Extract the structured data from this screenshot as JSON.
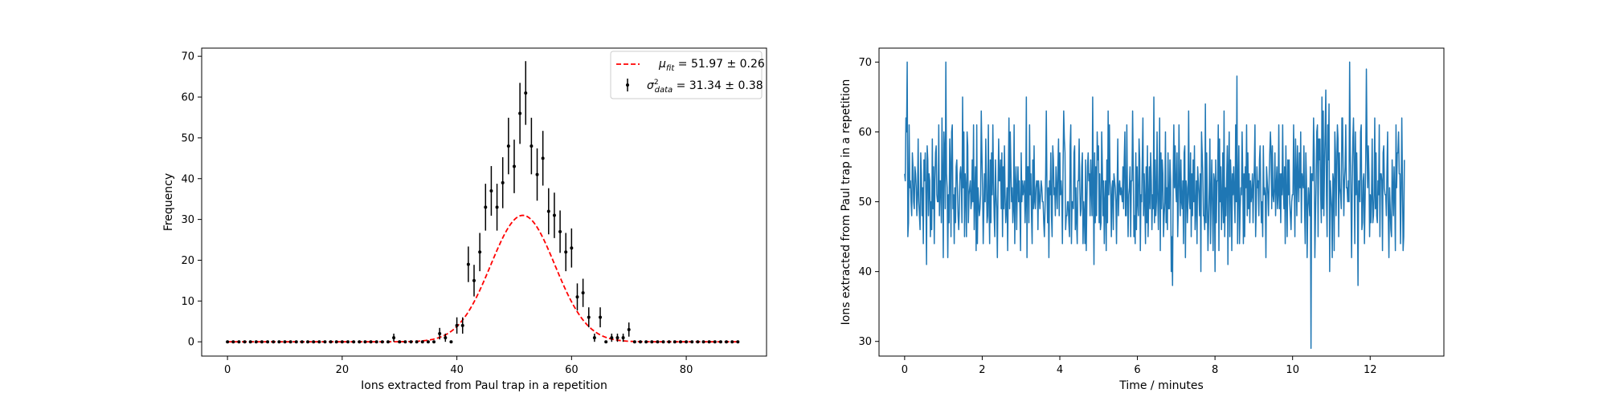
{
  "chart_data": [
    {
      "type": "scatter",
      "xlabel": "Ions extracted from Paul trap in a repetition",
      "ylabel": "Frequency",
      "xlim": [
        -4.5,
        94
      ],
      "ylim": [
        -3.5,
        72
      ],
      "xticks": [
        "0",
        "20",
        "40",
        "60",
        "80"
      ],
      "xtick_values": [
        0,
        20,
        40,
        60,
        80
      ],
      "yticks": [
        "0",
        "10",
        "20",
        "30",
        "40",
        "50",
        "60",
        "70"
      ],
      "ytick_values": [
        0,
        10,
        20,
        30,
        40,
        50,
        60,
        70
      ],
      "legend_position": "top-right",
      "legend": [
        {
          "text": "μfit = 51.97 ± 0.26",
          "style": "red dashed line"
        },
        {
          "text": "σ²data = 31.34 ± 0.38",
          "style": "black points with error bars"
        }
      ],
      "fit": {
        "name": "μfit = 51.97 ± 0.26",
        "type": "gaussian",
        "amplitude": 31,
        "mean": 51.5,
        "sigma": 5.6,
        "color": "#ff0000"
      },
      "series": [
        {
          "name": "σ²data = 31.34 ± 0.38",
          "color": "#000000",
          "x": [
            0,
            1,
            2,
            3,
            4,
            5,
            6,
            7,
            8,
            9,
            10,
            11,
            12,
            13,
            14,
            15,
            16,
            17,
            18,
            19,
            20,
            21,
            22,
            23,
            24,
            25,
            26,
            27,
            28,
            29,
            30,
            31,
            32,
            33,
            34,
            35,
            36,
            37,
            38,
            39,
            40,
            41,
            42,
            43,
            44,
            45,
            46,
            47,
            48,
            49,
            50,
            51,
            52,
            53,
            54,
            55,
            56,
            57,
            58,
            59,
            60,
            61,
            62,
            63,
            64,
            65,
            66,
            67,
            68,
            69,
            70,
            71,
            72,
            73,
            74,
            75,
            76,
            77,
            78,
            79,
            80,
            81,
            82,
            83,
            84,
            85,
            86,
            87,
            88,
            89
          ],
          "y": [
            0,
            0,
            0,
            0,
            0,
            0,
            0,
            0,
            0,
            0,
            0,
            0,
            0,
            0,
            0,
            0,
            0,
            0,
            0,
            0,
            0,
            0,
            0,
            0,
            0,
            0,
            0,
            0,
            0,
            1,
            0,
            0,
            0,
            0,
            0,
            0,
            0,
            2,
            1,
            0,
            4,
            4,
            19,
            15,
            22,
            33,
            37,
            33,
            39,
            48,
            43,
            56,
            61,
            48,
            41,
            45,
            32,
            31,
            27,
            22,
            23,
            11,
            12,
            6,
            1,
            6,
            0,
            1,
            1,
            1,
            3,
            0,
            0,
            0,
            0,
            0,
            0,
            0,
            0,
            0,
            0,
            0,
            0,
            0,
            0,
            0,
            0,
            0,
            0,
            0
          ]
        }
      ]
    },
    {
      "type": "line",
      "xlabel": "Time / minutes",
      "ylabel": "Ions extracted from Paul trap in a repetition",
      "xlim": [
        -0.66,
        13.9
      ],
      "ylim": [
        27.9,
        72.0
      ],
      "xticks": [
        "0",
        "2",
        "4",
        "6",
        "8",
        "10",
        "12"
      ],
      "xtick_values": [
        0,
        2,
        4,
        6,
        8,
        10,
        12
      ],
      "yticks": [
        "30",
        "40",
        "50",
        "60",
        "70"
      ],
      "ytick_values": [
        30,
        40,
        50,
        60,
        70
      ],
      "series": [
        {
          "color": "#1f77b4",
          "x_start": 0.0,
          "x_step": 0.0166,
          "y": [
            54,
            53,
            62,
            60,
            70,
            45,
            47,
            61,
            52,
            53,
            50,
            48,
            57,
            55,
            50,
            49,
            55,
            54,
            52,
            48,
            51,
            59,
            50,
            48,
            46,
            57,
            54,
            48,
            52,
            44,
            56,
            53,
            57,
            51,
            41,
            58,
            56,
            48,
            54,
            53,
            45,
            50,
            46,
            59,
            49,
            55,
            44,
            53,
            57,
            58,
            51,
            50,
            50,
            61,
            48,
            53,
            53,
            47,
            62,
            54,
            42,
            60,
            57,
            49,
            70,
            54,
            52,
            42,
            51,
            47,
            59,
            55,
            45,
            60,
            61,
            49,
            51,
            44,
            52,
            47,
            55,
            56,
            52,
            48,
            46,
            49,
            54,
            55,
            53,
            47,
            65,
            52,
            60,
            45,
            54,
            52,
            45,
            60,
            58,
            47,
            51,
            52,
            53,
            49,
            50,
            56,
            50,
            61,
            46,
            51,
            55,
            43,
            61,
            44,
            52,
            50,
            48,
            49,
            51,
            63,
            57,
            52,
            44,
            49,
            54,
            50,
            59,
            53,
            47,
            48,
            61,
            50,
            44,
            56,
            47,
            57,
            51,
            61,
            53,
            48,
            45,
            56,
            51,
            49,
            42,
            52,
            59,
            53,
            53,
            56,
            49,
            57,
            45,
            55,
            49,
            58,
            51,
            47,
            49,
            52,
            43,
            53,
            62,
            49,
            60,
            55,
            50,
            52,
            47,
            49,
            61,
            44,
            52,
            55,
            46,
            52,
            55,
            50,
            53,
            49,
            43,
            57,
            50,
            53,
            51,
            52,
            53,
            47,
            50,
            65,
            42,
            55,
            55,
            47,
            61,
            51,
            54,
            48,
            44,
            56,
            49,
            58,
            50,
            49,
            52,
            53,
            53,
            46,
            53,
            51,
            49,
            51,
            53,
            52,
            50,
            50,
            47,
            45,
            49,
            54,
            63,
            52,
            47,
            52,
            42,
            53,
            51,
            57,
            48,
            45,
            58,
            56,
            51,
            52,
            48,
            55,
            52,
            49,
            55,
            59,
            48,
            57,
            51,
            53,
            51,
            44,
            55,
            63,
            59,
            57,
            46,
            48,
            48,
            50,
            50,
            47,
            45,
            58,
            61,
            44,
            50,
            50,
            49,
            57,
            58,
            46,
            52,
            47,
            44,
            53,
            53,
            59,
            52,
            48,
            49,
            55,
            57,
            44,
            50,
            48,
            44,
            56,
            43,
            50,
            55,
            57,
            53,
            54,
            48,
            56,
            52,
            48,
            65,
            52,
            41,
            57,
            47,
            55,
            48,
            60,
            56,
            58,
            47,
            54,
            46,
            47,
            60,
            55,
            48,
            53,
            44,
            50,
            53,
            43,
            56,
            47,
            63,
            51,
            61,
            53,
            51,
            45,
            52,
            53,
            46,
            54,
            53,
            52,
            50,
            44,
            52,
            59,
            48,
            52,
            53,
            51,
            52,
            51,
            50,
            55,
            49,
            56,
            60,
            48,
            48,
            61,
            51,
            45,
            51,
            52,
            55,
            45,
            53,
            53,
            63,
            55,
            45,
            48,
            44,
            57,
            46,
            55,
            50,
            48,
            59,
            56,
            43,
            51,
            50,
            56,
            62,
            48,
            54,
            50,
            44,
            55,
            47,
            58,
            45,
            50,
            55,
            49,
            57,
            53,
            46,
            51,
            49,
            65,
            47,
            56,
            48,
            50,
            60,
            51,
            46,
            52,
            62,
            43,
            57,
            49,
            56,
            54,
            45,
            48,
            50,
            60,
            47,
            52,
            46,
            57,
            49,
            49,
            56,
            53,
            40,
            45,
            38,
            53,
            61,
            52,
            58,
            52,
            50,
            57,
            45,
            49,
            61,
            53,
            48,
            56,
            50,
            49,
            53,
            44,
            57,
            58,
            42,
            53,
            52,
            47,
            50,
            63,
            51,
            49,
            57,
            45,
            54,
            48,
            56,
            50,
            58,
            46,
            49,
            53,
            44,
            55,
            53,
            51,
            48,
            54,
            40,
            60,
            57,
            54,
            48,
            48,
            46,
            64,
            47,
            57,
            50,
            43,
            47,
            52,
            59,
            44,
            51,
            56,
            49,
            43,
            54,
            53,
            40,
            56,
            47,
            53,
            53,
            61,
            43,
            59,
            50,
            55,
            46,
            50,
            57,
            47,
            63,
            45,
            52,
            48,
            53,
            58,
            41,
            55,
            60,
            45,
            56,
            53,
            43,
            54,
            51,
            55,
            51,
            47,
            61,
            50,
            68,
            44,
            52,
            58,
            44,
            49,
            52,
            51,
            60,
            54,
            44,
            54,
            45,
            55,
            52,
            61,
            48,
            57,
            49,
            54,
            47,
            53,
            50,
            51,
            54,
            47,
            52,
            55,
            61,
            45,
            49,
            55,
            52,
            53,
            48,
            56,
            58,
            51,
            47,
            50,
            45,
            58,
            51,
            52,
            51,
            42,
            55,
            53,
            51,
            48,
            53,
            57,
            60,
            57,
            49,
            58,
            51,
            50,
            52,
            57,
            48,
            52,
            55,
            49,
            51,
            61,
            49,
            54,
            47,
            54,
            51,
            61,
            52,
            49,
            55,
            44,
            58,
            51,
            45,
            56,
            51,
            56,
            50,
            48,
            46,
            50,
            51,
            51,
            61,
            53,
            45,
            59,
            54,
            48,
            58,
            53,
            50,
            57,
            52,
            60,
            47,
            54,
            53,
            52,
            58,
            49,
            44,
            57,
            53,
            42,
            49,
            52,
            50,
            48,
            55,
            29,
            54,
            54,
            53,
            62,
            57,
            42,
            48,
            53,
            60,
            61,
            45,
            59,
            56,
            59,
            51,
            47,
            65,
            49,
            63,
            48,
            55,
            60,
            66,
            51,
            45,
            61,
            56,
            64,
            40,
            53,
            51,
            49,
            42,
            54,
            53,
            43,
            60,
            57,
            48,
            55,
            61,
            59,
            45,
            57,
            52,
            51,
            49,
            62,
            62,
            54,
            48,
            53,
            55,
            61,
            52,
            52,
            50,
            53,
            50,
            70,
            57,
            51,
            42,
            52,
            59,
            62,
            55,
            44,
            60,
            51,
            57,
            51,
            38,
            53,
            53,
            50,
            60,
            61,
            46,
            47,
            53,
            54,
            44,
            50,
            56,
            69,
            58,
            52,
            58,
            54,
            45,
            51,
            47,
            51,
            59,
            47,
            48,
            51,
            62,
            49,
            57,
            48,
            47,
            53,
            51,
            61,
            45,
            54,
            54,
            53,
            43,
            57,
            58,
            52,
            51,
            51,
            48,
            55,
            60,
            48,
            42,
            52,
            49,
            46,
            45,
            56,
            52,
            48,
            55,
            51,
            43,
            61,
            52,
            57,
            57,
            60,
            54,
            54,
            44,
            51,
            62,
            53,
            43,
            45,
            56
          ]
        }
      ]
    }
  ]
}
